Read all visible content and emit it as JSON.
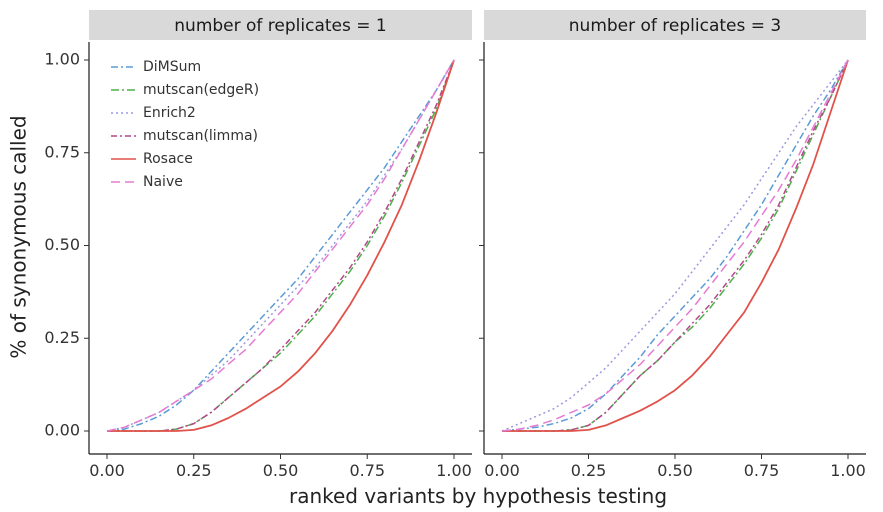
{
  "chart_data": {
    "type": "line",
    "xlabel": "ranked variants by hypothesis testing",
    "ylabel": "% of synonymous called",
    "xlim": [
      0,
      1
    ],
    "ylim": [
      0,
      1
    ],
    "xticks": [
      "0.00",
      "0.25",
      "0.50",
      "0.75",
      "1.00"
    ],
    "yticks": [
      "0.00",
      "0.25",
      "0.50",
      "0.75",
      "1.00"
    ],
    "grid": false,
    "legend_position": "top-left",
    "strip_color": "#d9d9d9",
    "series_styles": [
      {
        "name": "DiMSum",
        "color": "#5b9bd5",
        "dash": "7 3 2 3"
      },
      {
        "name": "mutscan(edgeR)",
        "color": "#4daf4a",
        "dash": "8 3 2 3"
      },
      {
        "name": "Enrich2",
        "color": "#9a9ae0",
        "dash": "2 3"
      },
      {
        "name": "mutscan(limma)",
        "color": "#b5478a",
        "dash": "6 3 2 3"
      },
      {
        "name": "Rosace",
        "color": "#e0524a",
        "dash": ""
      },
      {
        "name": "Naive",
        "color": "#e57bd2",
        "dash": "9 5"
      }
    ],
    "panels": [
      {
        "title": "number of replicates = 1",
        "x": [
          0,
          0.05,
          0.1,
          0.15,
          0.2,
          0.25,
          0.3,
          0.35,
          0.4,
          0.45,
          0.5,
          0.55,
          0.6,
          0.65,
          0.7,
          0.75,
          0.8,
          0.85,
          0.9,
          0.95,
          1.0
        ],
        "series": [
          {
            "name": "DiMSum",
            "values": [
              0,
              0.005,
              0.02,
              0.04,
              0.07,
              0.11,
              0.16,
              0.21,
              0.26,
              0.31,
              0.36,
              0.41,
              0.47,
              0.53,
              0.59,
              0.65,
              0.71,
              0.78,
              0.85,
              0.92,
              1.0
            ]
          },
          {
            "name": "mutscan(edgeR)",
            "values": [
              0,
              0,
              0,
              0,
              0.005,
              0.02,
              0.05,
              0.09,
              0.13,
              0.17,
              0.21,
              0.26,
              0.31,
              0.37,
              0.43,
              0.5,
              0.58,
              0.67,
              0.77,
              0.87,
              1.0
            ]
          },
          {
            "name": "Enrich2",
            "values": [
              0,
              0.01,
              0.03,
              0.05,
              0.08,
              0.11,
              0.15,
              0.19,
              0.24,
              0.29,
              0.34,
              0.39,
              0.44,
              0.5,
              0.56,
              0.62,
              0.69,
              0.76,
              0.84,
              0.92,
              1.0
            ]
          },
          {
            "name": "mutscan(limma)",
            "values": [
              0,
              0,
              0,
              0,
              0.005,
              0.02,
              0.05,
              0.09,
              0.13,
              0.17,
              0.22,
              0.27,
              0.32,
              0.38,
              0.44,
              0.51,
              0.59,
              0.68,
              0.78,
              0.88,
              1.0
            ]
          },
          {
            "name": "Rosace",
            "values": [
              0,
              0,
              0,
              0,
              0,
              0.003,
              0.015,
              0.035,
              0.06,
              0.09,
              0.12,
              0.16,
              0.21,
              0.27,
              0.34,
              0.42,
              0.51,
              0.61,
              0.73,
              0.86,
              1.0
            ]
          },
          {
            "name": "Naive",
            "values": [
              0,
              0.01,
              0.03,
              0.05,
              0.08,
              0.11,
              0.14,
              0.18,
              0.22,
              0.27,
              0.32,
              0.37,
              0.43,
              0.49,
              0.55,
              0.61,
              0.68,
              0.76,
              0.84,
              0.92,
              1.0
            ]
          }
        ]
      },
      {
        "title": "number of replicates = 3",
        "x": [
          0,
          0.05,
          0.1,
          0.15,
          0.2,
          0.25,
          0.3,
          0.35,
          0.4,
          0.45,
          0.5,
          0.55,
          0.6,
          0.65,
          0.7,
          0.75,
          0.8,
          0.85,
          0.9,
          0.95,
          1.0
        ],
        "series": [
          {
            "name": "DiMSum",
            "values": [
              0,
              0.005,
              0.01,
              0.02,
              0.035,
              0.06,
              0.1,
              0.15,
              0.2,
              0.26,
              0.31,
              0.36,
              0.41,
              0.47,
              0.54,
              0.61,
              0.69,
              0.77,
              0.85,
              0.92,
              1.0
            ]
          },
          {
            "name": "mutscan(edgeR)",
            "values": [
              0,
              0,
              0,
              0,
              0.003,
              0.015,
              0.05,
              0.1,
              0.15,
              0.19,
              0.24,
              0.28,
              0.33,
              0.39,
              0.45,
              0.52,
              0.6,
              0.7,
              0.8,
              0.9,
              1.0
            ]
          },
          {
            "name": "Enrich2",
            "values": [
              0,
              0.02,
              0.04,
              0.06,
              0.09,
              0.13,
              0.17,
              0.22,
              0.27,
              0.32,
              0.37,
              0.43,
              0.49,
              0.55,
              0.61,
              0.68,
              0.75,
              0.82,
              0.88,
              0.94,
              1.0
            ]
          },
          {
            "name": "mutscan(limma)",
            "values": [
              0,
              0,
              0,
              0,
              0.003,
              0.015,
              0.05,
              0.1,
              0.15,
              0.19,
              0.24,
              0.29,
              0.34,
              0.4,
              0.46,
              0.53,
              0.61,
              0.71,
              0.81,
              0.9,
              1.0
            ]
          },
          {
            "name": "Rosace",
            "values": [
              0,
              0,
              0,
              0,
              0,
              0.003,
              0.015,
              0.035,
              0.055,
              0.08,
              0.11,
              0.15,
              0.2,
              0.26,
              0.32,
              0.4,
              0.49,
              0.6,
              0.72,
              0.86,
              1.0
            ]
          },
          {
            "name": "Naive",
            "values": [
              0,
              0.005,
              0.015,
              0.03,
              0.05,
              0.07,
              0.1,
              0.14,
              0.18,
              0.23,
              0.28,
              0.33,
              0.39,
              0.45,
              0.51,
              0.58,
              0.65,
              0.73,
              0.82,
              0.91,
              1.0
            ]
          }
        ]
      }
    ]
  }
}
